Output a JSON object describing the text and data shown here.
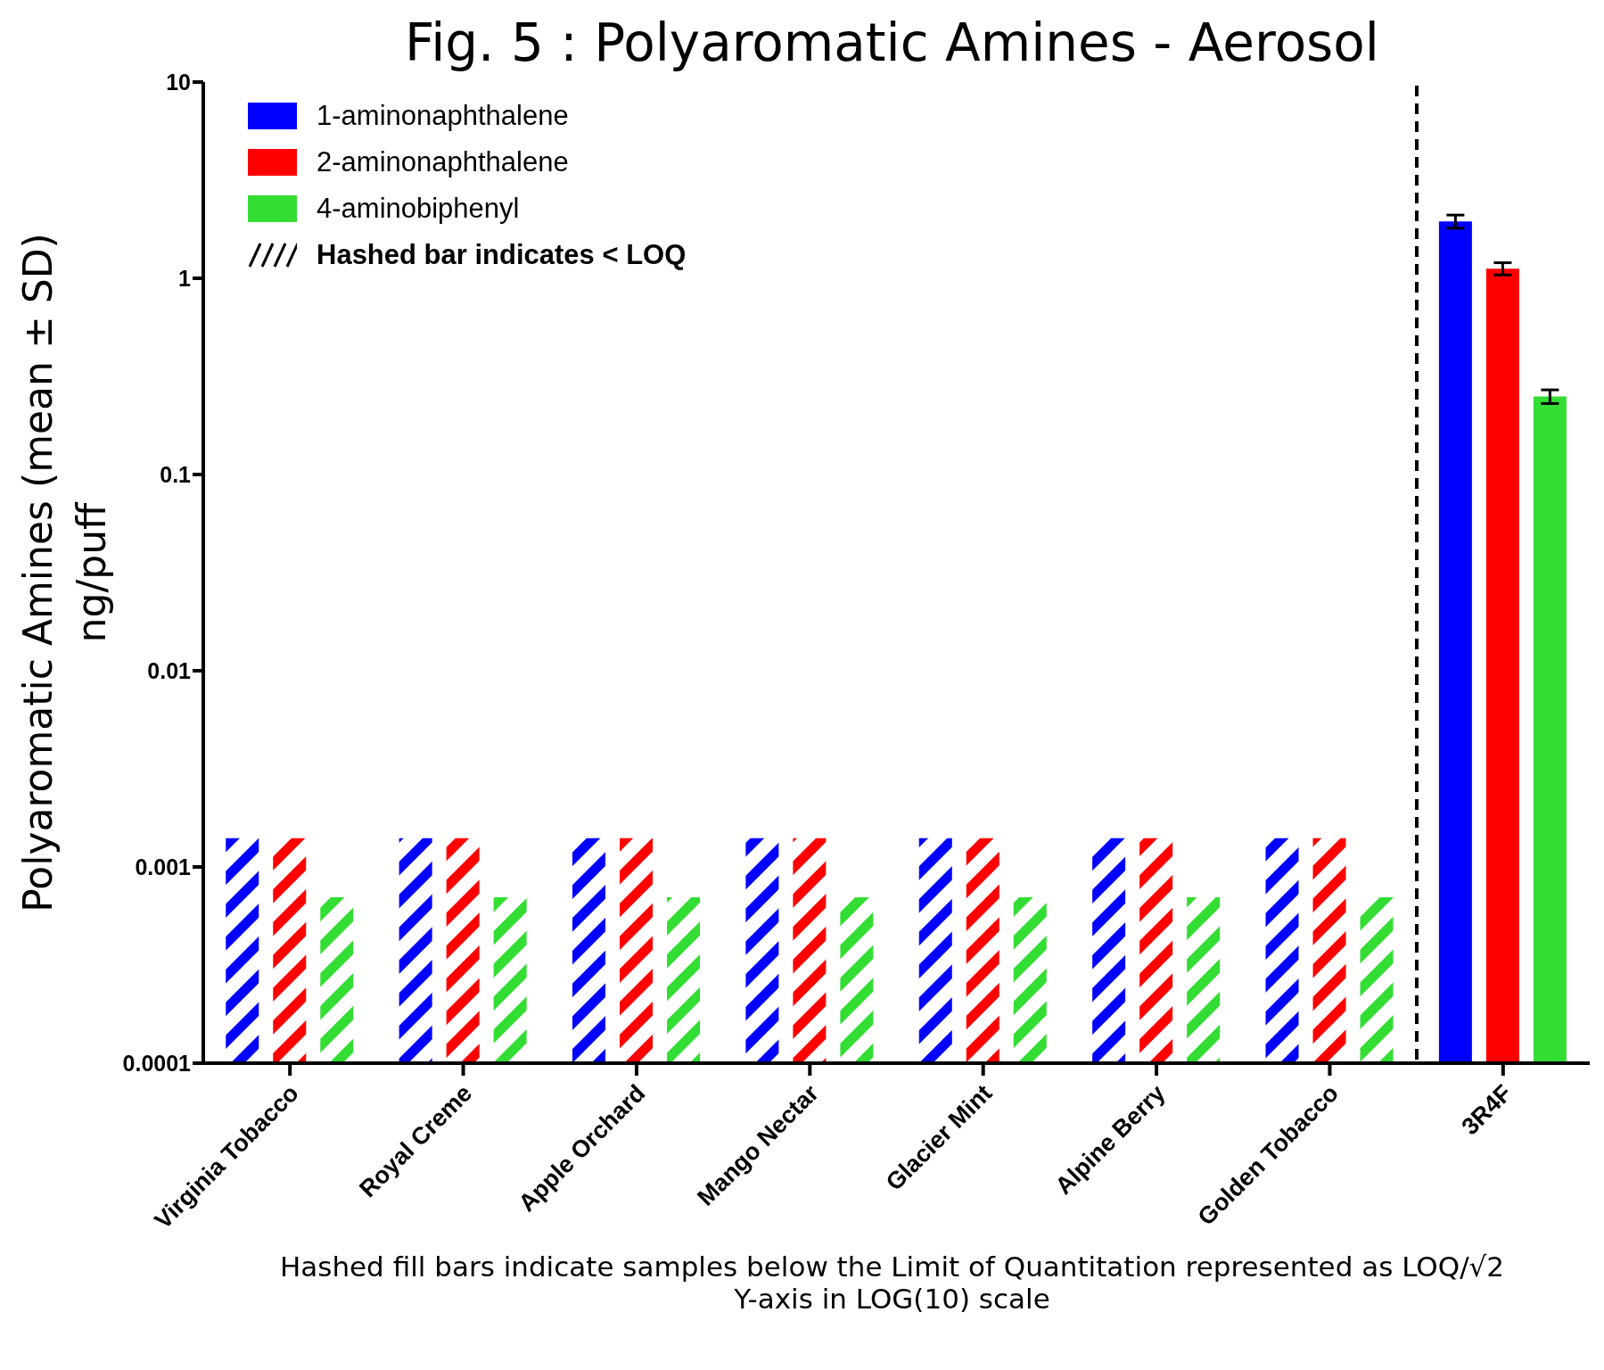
{
  "chart_data": {
    "type": "bar",
    "title": "Fig. 5 : Polyaromatic Amines - Aerosol",
    "ylabel": "Polyaromatic Amines (mean ± SD)\nng/puff",
    "categories": [
      "Virginia Tobacco",
      "Royal Creme",
      "Apple Orchard",
      "Mango Nectar",
      "Glacier Mint",
      "Alpine Berry",
      "Golden Tobacco",
      "3R4F"
    ],
    "series": [
      {
        "name": "1-aminonaphthalene",
        "color": "#0000ff",
        "values": [
          0.0014,
          0.0014,
          0.0014,
          0.0014,
          0.0014,
          0.0014,
          0.0014,
          1.95
        ],
        "errors": [
          null,
          null,
          null,
          null,
          null,
          null,
          null,
          [
            1.8,
            2.1
          ]
        ]
      },
      {
        "name": "2-aminonaphthalene",
        "color": "#ff0000",
        "values": [
          0.0014,
          0.0014,
          0.0014,
          0.0014,
          0.0014,
          0.0014,
          0.0014,
          1.12
        ],
        "errors": [
          null,
          null,
          null,
          null,
          null,
          null,
          null,
          [
            1.04,
            1.2
          ]
        ]
      },
      {
        "name": "4-aminobiphenyl",
        "color": "#33dd33",
        "values": [
          0.0007,
          0.0007,
          0.0007,
          0.0007,
          0.0007,
          0.0007,
          0.0007,
          0.25
        ],
        "errors": [
          null,
          null,
          null,
          null,
          null,
          null,
          null,
          [
            0.23,
            0.27
          ]
        ]
      }
    ],
    "ylim": [
      0.0001,
      10
    ],
    "yticks": [
      0.0001,
      0.001,
      0.01,
      0.1,
      1,
      10
    ],
    "log": true,
    "legend": "top left",
    "annotations": [
      "Hashed bar indicates < LOQ",
      "Hashed fill bars indicate samples below the Limit of Quantitation represented as LOQ/√2",
      "Y-axis in LOG(10) scale"
    ]
  }
}
